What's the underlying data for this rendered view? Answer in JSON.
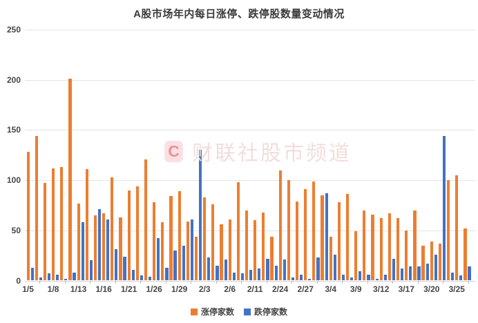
{
  "title": "A股市场年内每日涨停、跌停股数量变动情况",
  "watermark": {
    "badge_letter": "C",
    "text": "财联社股市频道"
  },
  "chart_data": {
    "type": "bar",
    "title": "A股市场年内每日涨停、跌停股数量变动情况",
    "xlabel": "",
    "ylabel": "",
    "ylim": [
      0,
      250
    ],
    "yticks": [
      0,
      50,
      100,
      150,
      200,
      250
    ],
    "grid": true,
    "legend_position": "bottom",
    "x_tick_labels": [
      "1/5",
      "1/8",
      "1/13",
      "1/16",
      "1/21",
      "1/26",
      "1/29",
      "2/3",
      "2/6",
      "2/11",
      "2/24",
      "2/27",
      "3/4",
      "3/9",
      "3/12",
      "3/17",
      "3/20",
      "3/25"
    ],
    "label_every_n_bars": 3,
    "series": [
      {
        "name": "涨停家数",
        "color": "#ED7D31",
        "values": [
          128,
          144,
          97,
          112,
          113,
          201,
          77,
          111,
          65,
          67,
          103,
          63,
          90,
          94,
          121,
          78,
          58,
          84,
          89,
          59,
          44,
          83,
          76,
          56,
          61,
          98,
          70,
          60,
          68,
          44,
          110,
          100,
          79,
          91,
          99,
          85,
          44,
          78,
          86,
          49,
          70,
          66,
          62,
          67,
          62,
          50,
          70,
          35,
          39,
          37,
          100,
          105,
          52
        ]
      },
      {
        "name": "跌停家数",
        "color": "#4472C4",
        "values": [
          13,
          3,
          7,
          6,
          2,
          8,
          58,
          20,
          71,
          61,
          31,
          24,
          11,
          5,
          4,
          42,
          13,
          30,
          35,
          61,
          130,
          23,
          15,
          21,
          8,
          7,
          11,
          12,
          22,
          15,
          21,
          3,
          6,
          2,
          23,
          87,
          26,
          6,
          3,
          9,
          6,
          2,
          6,
          22,
          12,
          14,
          14,
          17,
          26,
          144,
          8,
          5,
          14
        ]
      }
    ]
  }
}
